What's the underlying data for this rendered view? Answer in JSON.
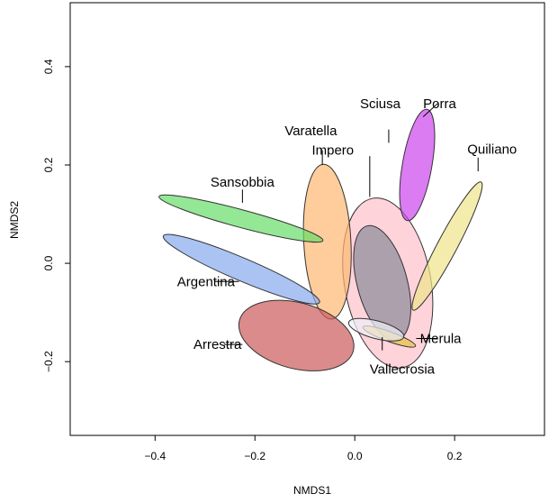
{
  "chart_data": {
    "type": "ellipse-ordination",
    "xlabel": "NMDS1",
    "ylabel": "NMDS2",
    "xlim": [
      -0.57,
      0.38
    ],
    "ylim": [
      -0.35,
      0.53
    ],
    "x_ticks": [
      -0.4,
      -0.2,
      0.0,
      0.2
    ],
    "x_tick_labels": [
      "−0.4",
      "−0.2",
      "0.0",
      "0.2"
    ],
    "y_ticks": [
      -0.2,
      0.0,
      0.2,
      0.4
    ],
    "y_tick_labels": [
      "−0.2",
      "0.0",
      "0.2",
      "0.4"
    ],
    "grid": false,
    "legend": "none",
    "series": [
      {
        "name": "Sciusa",
        "cx": 0.066,
        "cy": -0.04,
        "rx": 0.172,
        "ry": 0.088,
        "angle": 100,
        "color": "#ffc0cb",
        "label_x": 0.051,
        "label_y": 0.325,
        "leader": [
          [
            0.068,
            0.245
          ],
          [
            0.068,
            0.272
          ]
        ]
      },
      {
        "name": "Impero",
        "cx": 0.055,
        "cy": -0.04,
        "rx": 0.118,
        "ry": 0.051,
        "angle": 105,
        "color": "#8a8a9a",
        "label_x": -0.044,
        "label_y": 0.23,
        "leader": [
          [
            0.03,
            0.135
          ],
          [
            0.03,
            0.218
          ]
        ]
      },
      {
        "name": "Porra",
        "cx": 0.125,
        "cy": 0.2,
        "rx": 0.113,
        "ry": 0.03,
        "angle": 80,
        "color": "#cc44ee",
        "label_x": 0.17,
        "label_y": 0.325,
        "leader": [
          [
            0.137,
            0.298
          ],
          [
            0.166,
            0.325
          ]
        ]
      },
      {
        "name": "Quiliano",
        "cx": 0.185,
        "cy": 0.035,
        "rx": 0.145,
        "ry": 0.02,
        "angle": 62,
        "color": "#eee48a",
        "label_x": 0.275,
        "label_y": 0.232,
        "leader": [
          [
            0.247,
            0.187
          ],
          [
            0.247,
            0.215
          ]
        ]
      },
      {
        "name": "Varatella",
        "cx": -0.055,
        "cy": 0.044,
        "rx": 0.155,
        "ry": 0.048,
        "angle": 93,
        "color": "#ffb870",
        "label_x": -0.088,
        "label_y": 0.27,
        "leader": [
          [
            -0.065,
            0.2
          ],
          [
            -0.065,
            0.23
          ]
        ]
      },
      {
        "name": "Sansobbia",
        "cx": -0.228,
        "cy": 0.091,
        "rx": 0.17,
        "ry": 0.018,
        "angle": -15,
        "color": "#66dd66",
        "label_x": -0.225,
        "label_y": 0.165,
        "leader": [
          [
            -0.225,
            0.123
          ],
          [
            -0.225,
            0.15
          ]
        ]
      },
      {
        "name": "Argentina",
        "cx": -0.227,
        "cy": -0.012,
        "rx": 0.17,
        "ry": 0.023,
        "angle": -23,
        "color": "#88aaee",
        "label_x": -0.298,
        "label_y": -0.037,
        "leader": [
          [
            -0.28,
            -0.037
          ],
          [
            -0.232,
            -0.037
          ]
        ]
      },
      {
        "name": "Arrestra",
        "cx": -0.117,
        "cy": -0.147,
        "rx": 0.118,
        "ry": 0.067,
        "angle": -15,
        "color": "#cc5a5a",
        "label_x": -0.275,
        "label_y": -0.165,
        "leader": [
          [
            -0.262,
            -0.165
          ],
          [
            -0.225,
            -0.165
          ]
        ]
      },
      {
        "name": "Merula",
        "cx": 0.069,
        "cy": -0.149,
        "rx": 0.056,
        "ry": 0.01,
        "angle": -20,
        "color": "#e6c040",
        "label_x": 0.172,
        "label_y": -0.153,
        "leader": [
          [
            0.123,
            -0.153
          ],
          [
            0.165,
            -0.153
          ]
        ]
      },
      {
        "name": "Vallecrosia",
        "cx": 0.043,
        "cy": -0.135,
        "rx": 0.057,
        "ry": 0.018,
        "angle": -15,
        "color": "#eef0f8",
        "label_x": 0.095,
        "label_y": -0.215,
        "leader": [
          [
            0.055,
            -0.15
          ],
          [
            0.055,
            -0.177
          ]
        ]
      }
    ]
  }
}
